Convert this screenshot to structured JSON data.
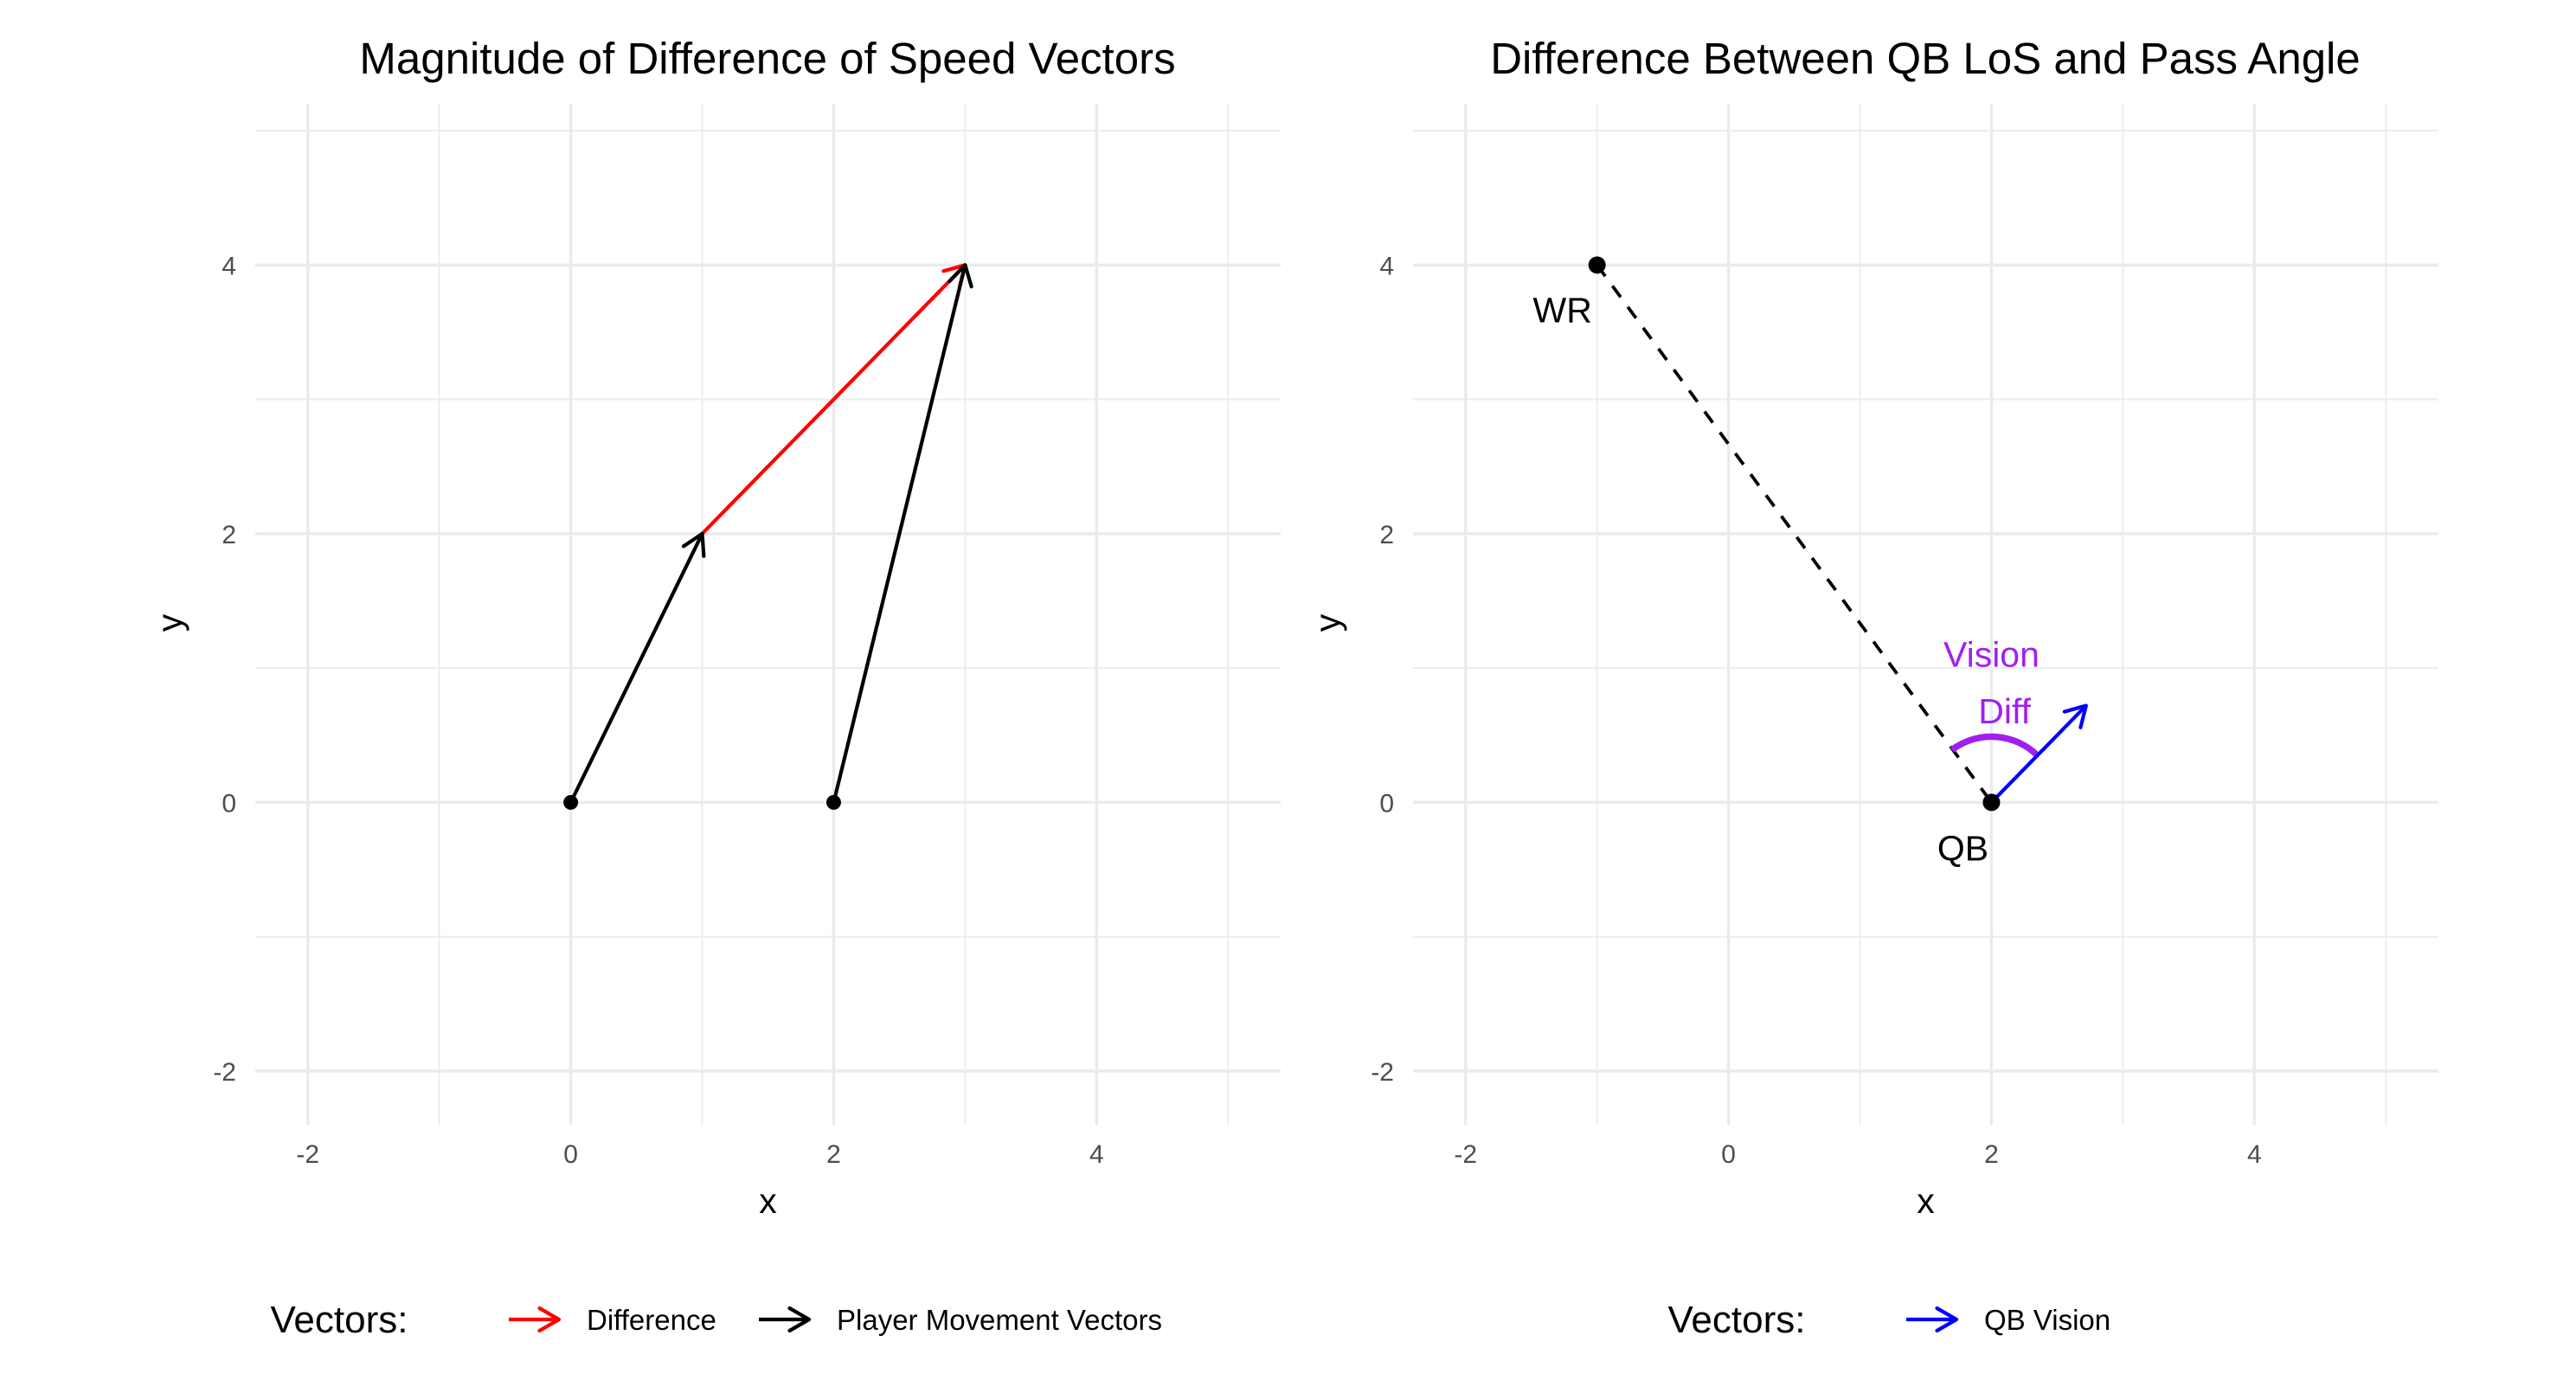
{
  "chart_data": [
    {
      "type": "line",
      "title": "Magnitude of Difference of Speed Vectors",
      "xlabel": "x",
      "ylabel": "y",
      "xlim": [
        -2.4,
        5.4
      ],
      "ylim": [
        -2.4,
        5.2
      ],
      "x_ticks": [
        -2,
        0,
        2,
        4
      ],
      "y_ticks": [
        -2,
        0,
        2,
        4
      ],
      "x_tick_labels": [
        "-2",
        "0",
        "2",
        "4"
      ],
      "y_tick_labels": [
        "-2",
        "0",
        "2",
        "4"
      ],
      "grid": true,
      "legend": {
        "title": "Vectors:",
        "position": "bottom"
      },
      "series": [
        {
          "name": "Difference",
          "color": "#ff0000",
          "segments": [
            {
              "from": [
                1,
                2
              ],
              "to": [
                3,
                4
              ]
            }
          ]
        },
        {
          "name": "Player Movement Vectors",
          "color": "#000000",
          "segments": [
            {
              "from": [
                0,
                0
              ],
              "to": [
                1,
                2
              ]
            },
            {
              "from": [
                2,
                0
              ],
              "to": [
                3,
                4
              ]
            }
          ]
        }
      ],
      "points": [
        {
          "x": 0,
          "y": 0
        },
        {
          "x": 2,
          "y": 0
        }
      ]
    },
    {
      "type": "line",
      "title": "Difference Between QB LoS and Pass Angle",
      "xlabel": "x",
      "ylabel": "y",
      "xlim": [
        -2.4,
        5.4
      ],
      "ylim": [
        -2.4,
        5.2
      ],
      "x_ticks": [
        -2,
        0,
        2,
        4
      ],
      "y_ticks": [
        -2,
        0,
        2,
        4
      ],
      "x_tick_labels": [
        "-2",
        "0",
        "2",
        "4"
      ],
      "y_tick_labels": [
        "-2",
        "0",
        "2",
        "4"
      ],
      "grid": true,
      "legend": {
        "title": "Vectors:",
        "position": "bottom"
      },
      "series": [
        {
          "name": "QB Vision",
          "color": "#0000ff",
          "segments": [
            {
              "from": [
                2,
                0
              ],
              "to": [
                2.72,
                0.72
              ]
            }
          ]
        }
      ],
      "line_of_sight": {
        "from": [
          -1,
          4
        ],
        "to": [
          2,
          0
        ],
        "style": "dashed",
        "color": "#000000"
      },
      "points": [
        {
          "x": -1,
          "y": 4,
          "label": "WR"
        },
        {
          "x": 2,
          "y": 0,
          "label": "QB"
        }
      ],
      "angle_arc": {
        "center": [
          2,
          0
        ],
        "radius": 0.5,
        "from_deg": 45,
        "to_deg": 127,
        "color": "#a020f0",
        "label_line1": "Vision",
        "label_line2": "Diff"
      }
    }
  ]
}
